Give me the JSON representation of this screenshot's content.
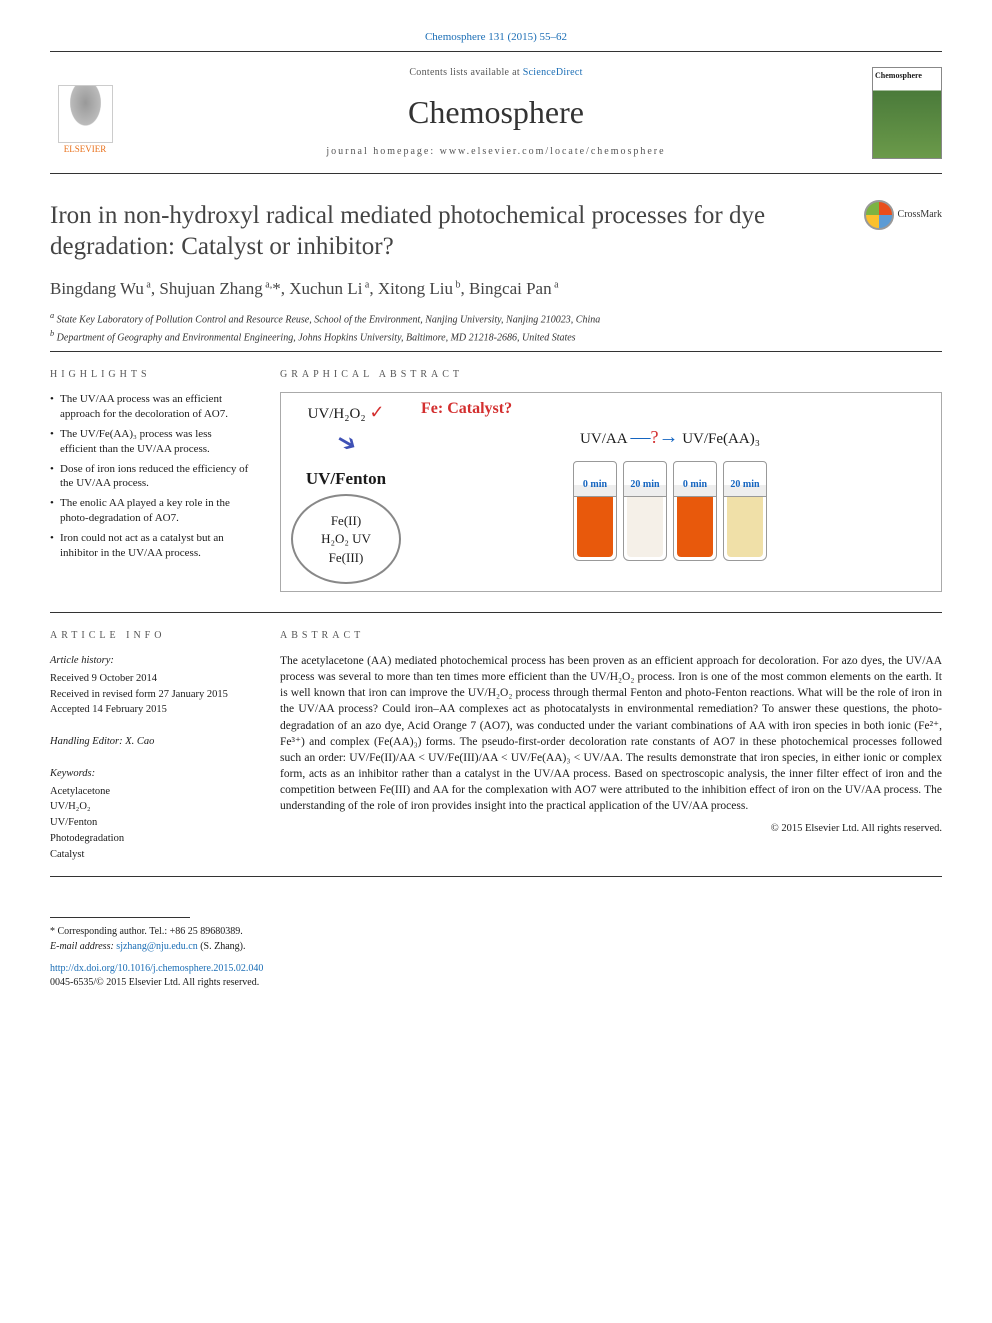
{
  "citation": "Chemosphere 131 (2015) 55–62",
  "header": {
    "contents_prefix": "Contents lists available at ",
    "contents_link": "ScienceDirect",
    "journal_name": "Chemosphere",
    "homepage_prefix": "journal homepage: ",
    "homepage": "www.elsevier.com/locate/chemosphere",
    "publisher": "ELSEVIER",
    "cover_title": "Chemosphere"
  },
  "crossmark_label": "CrossMark",
  "title": "Iron in non-hydroxyl radical mediated photochemical processes for dye degradation: Catalyst or inhibitor?",
  "authors_html": "Bingdang Wu<sup> a</sup>, Shujuan Zhang<sup> a,</sup>*, Xuchun Li<sup> a</sup>, Xitong Liu<sup> b</sup>, Bingcai Pan<sup> a</sup>",
  "affiliations": [
    "a State Key Laboratory of Pollution Control and Resource Reuse, School of the Environment, Nanjing University, Nanjing 210023, China",
    "b Department of Geography and Environmental Engineering, Johns Hopkins University, Baltimore, MD 21218-2686, United States"
  ],
  "sections": {
    "highlights": "HIGHLIGHTS",
    "graphical": "GRAPHICAL ABSTRACT",
    "info": "ARTICLE INFO",
    "abstract": "ABSTRACT"
  },
  "highlights": [
    "The UV/AA process was an efficient approach for the decoloration of AO7.",
    "The UV/Fe(AA)₃ process was less efficient than the UV/AA process.",
    "Dose of iron ions reduced the efficiency of the UV/AA process.",
    "The enolic AA played a key role in the photo-degradation of AO7.",
    "Iron could not act as a catalyst but an inhibitor in the UV/AA process."
  ],
  "graphical_abstract": {
    "uvh2o2": "UV/H₂O₂",
    "fe_catalyst": "Fe: Catalyst?",
    "uvfenton": "UV/Fenton",
    "cycle_top": "Fe(II)",
    "cycle_mid": "H₂O₂  UV",
    "cycle_bot": "Fe(III)",
    "uvaa": "UV/AA",
    "uvfeaa": "UV/Fe(AA)₃",
    "vials": [
      {
        "label": "0 min",
        "color": "#e8590c"
      },
      {
        "label": "20 min",
        "color": "#f5f0e8"
      },
      {
        "label": "0 min",
        "color": "#e8590c"
      },
      {
        "label": "20 min",
        "color": "#f0e0a8"
      }
    ]
  },
  "article_info": {
    "history_label": "Article history:",
    "history": [
      "Received 9 October 2014",
      "Received in revised form 27 January 2015",
      "Accepted 14 February 2015"
    ],
    "editor": "Handling Editor: X. Cao",
    "keywords_label": "Keywords:",
    "keywords": [
      "Acetylacetone",
      "UV/H₂O₂",
      "UV/Fenton",
      "Photodegradation",
      "Catalyst"
    ]
  },
  "abstract": "The acetylacetone (AA) mediated photochemical process has been proven as an efficient approach for decoloration. For azo dyes, the UV/AA process was several to more than ten times more efficient than the UV/H₂O₂ process. Iron is one of the most common elements on the earth. It is well known that iron can improve the UV/H₂O₂ process through thermal Fenton and photo-Fenton reactions. What will be the role of iron in the UV/AA process? Could iron–AA complexes act as photocatalysts in environmental remediation? To answer these questions, the photo-degradation of an azo dye, Acid Orange 7 (AO7), was conducted under the variant combinations of AA with iron species in both ionic (Fe²⁺, Fe³⁺) and complex (Fe(AA)₃) forms. The pseudo-first-order decoloration rate constants of AO7 in these photochemical processes followed such an order: UV/Fe(II)/AA < UV/Fe(III)/AA < UV/Fe(AA)₃ < UV/AA. The results demonstrate that iron species, in either ionic or complex form, acts as an inhibitor rather than a catalyst in the UV/AA process. Based on spectroscopic analysis, the inner filter effect of iron and the competition between Fe(III) and AA for the complexation with AO7 were attributed to the inhibition effect of iron on the UV/AA process. The understanding of the role of iron provides insight into the practical application of the UV/AA process.",
  "abstract_copyright": "© 2015 Elsevier Ltd. All rights reserved.",
  "corresponding": {
    "label": "* Corresponding author. Tel.: +86 25 89680389.",
    "email_label": "E-mail address: ",
    "email": "sjzhang@nju.edu.cn",
    "email_suffix": " (S. Zhang)."
  },
  "doi": {
    "url": "http://dx.doi.org/10.1016/j.chemosphere.2015.02.040",
    "issn_line": "0045-6535/© 2015 Elsevier Ltd. All rights reserved."
  },
  "colors": {
    "link": "#1a6db5",
    "red": "#d32f2f",
    "blue_arrow": "#1565c0"
  }
}
